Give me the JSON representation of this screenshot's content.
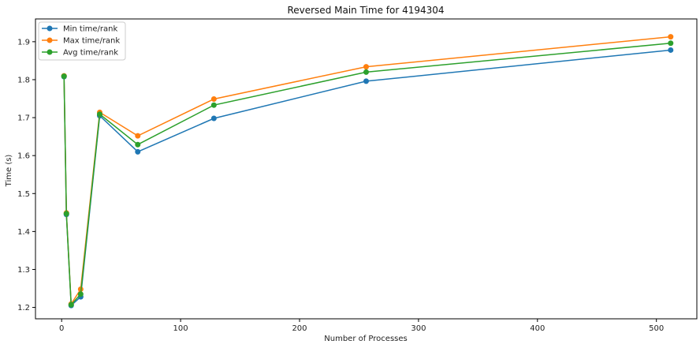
{
  "chart_data": {
    "type": "line",
    "title": "Reversed Main Time for 4194304",
    "xlabel": "Number of Processes",
    "ylabel": "Time (s)",
    "xlim": [
      -22,
      534
    ],
    "ylim": [
      1.17,
      1.96
    ],
    "xticks": [
      0,
      100,
      200,
      300,
      400,
      500
    ],
    "yticks": [
      1.2,
      1.3,
      1.4,
      1.5,
      1.6,
      1.7,
      1.8,
      1.9
    ],
    "grid": false,
    "legend_position": "upper-left",
    "x": [
      2,
      4,
      8,
      16,
      32,
      64,
      128,
      256,
      512
    ],
    "series": [
      {
        "name": "Min time/rank",
        "color": "#1f77b4",
        "values": [
          1.808,
          1.445,
          1.205,
          1.228,
          1.705,
          1.61,
          1.698,
          1.796,
          1.878
        ]
      },
      {
        "name": "Max time/rank",
        "color": "#ff7f0e",
        "values": [
          1.81,
          1.449,
          1.209,
          1.248,
          1.714,
          1.652,
          1.749,
          1.834,
          1.913
        ]
      },
      {
        "name": "Avg time/rank",
        "color": "#2ca02c",
        "values": [
          1.809,
          1.447,
          1.207,
          1.235,
          1.709,
          1.629,
          1.733,
          1.82,
          1.896
        ]
      }
    ]
  }
}
